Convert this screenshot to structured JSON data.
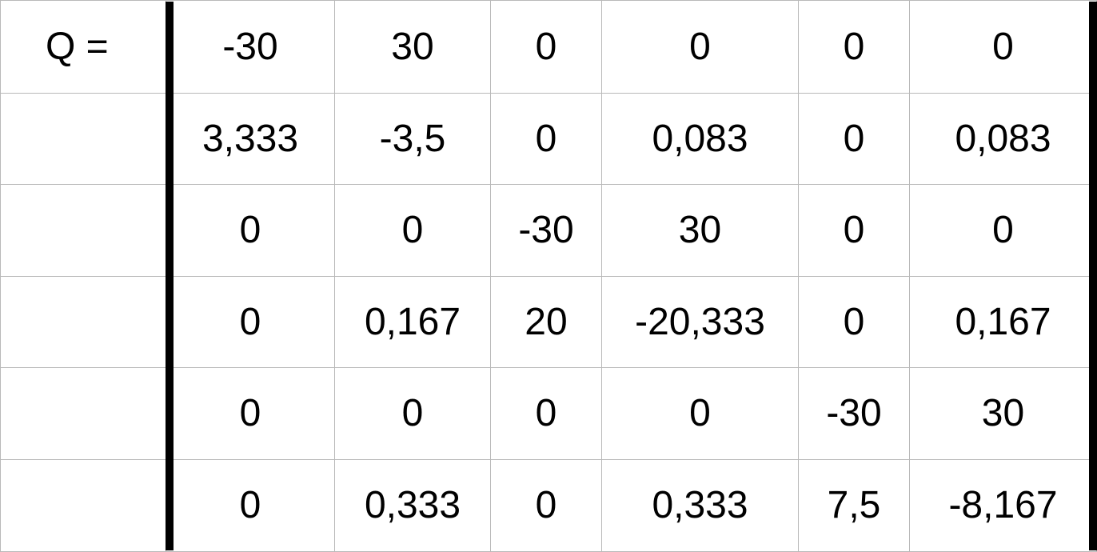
{
  "matrix": {
    "label": "Q =",
    "rows": [
      [
        "-30",
        "30",
        "0",
        "0",
        "0",
        "0"
      ],
      [
        "3,333",
        "-3,5",
        "0",
        "0,083",
        "0",
        "0,083"
      ],
      [
        "0",
        "0",
        "-30",
        "30",
        "0",
        "0"
      ],
      [
        "0",
        "0,167",
        "20",
        "-20,333",
        "0",
        "0,167"
      ],
      [
        "0",
        "0",
        "0",
        "0",
        "-30",
        "30"
      ],
      [
        "0",
        "0,333",
        "0",
        "0,333",
        "7,5",
        "-8,167"
      ]
    ]
  }
}
